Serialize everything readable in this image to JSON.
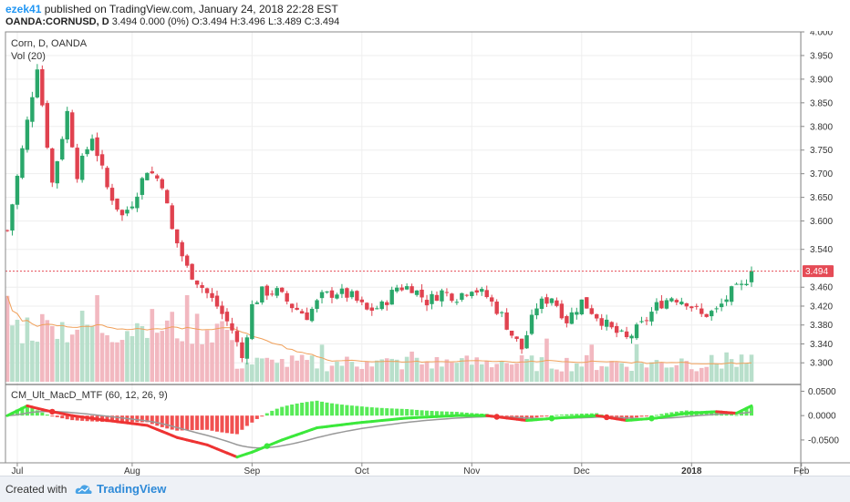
{
  "header": {
    "username": "ezek41",
    "published_text": " published on TradingView.com, January 24, 2018 22:28 EST",
    "symbol": "OANDA:CORNUSD, D",
    "quote": "  3.494  0.000 (0%)  O:3.494  H:3.496  L:3.489  C:3.494"
  },
  "legend": {
    "title": "Corn, D, OANDA",
    "volume_label": "Vol (20)",
    "indicator_label": "CM_Ult_MacD_MTF (60, 12, 26, 9)",
    "last_price_label": "3.494"
  },
  "footer": {
    "created_with": "Created with",
    "brand": "TradingView"
  },
  "colors": {
    "up": "#2aa76a",
    "down": "#e0424f",
    "volume_up": "#b8dfcb",
    "volume_down": "#f2b8c0",
    "volume_ma": "#f0a05a",
    "macd_up": "#3be83b",
    "macd_down": "#ee3333",
    "signal": "#999999",
    "last_price": "#e54b56",
    "grid": "#eeeeee"
  },
  "chart_data": {
    "type": "candlestick",
    "price_axis": {
      "ylim": [
        3.26,
        4.0
      ],
      "ticks": [
        "4.000",
        "3.950",
        "3.900",
        "3.850",
        "3.800",
        "3.750",
        "3.700",
        "3.650",
        "3.600",
        "3.540",
        "3.460",
        "3.420",
        "3.380",
        "3.340",
        "3.300"
      ]
    },
    "indicator_axis": {
      "ylim": [
        -0.095,
        0.062
      ],
      "ticks": [
        "0.0500",
        "0.0000",
        "-0.0500"
      ]
    },
    "time_axis": {
      "labels": [
        "Jul",
        "Aug",
        "Sep",
        "Oct",
        "Nov",
        "Dec",
        "2018",
        "Feb"
      ],
      "label_bar_index": [
        2,
        25,
        49,
        71,
        93,
        115,
        137,
        159
      ]
    },
    "last_price": 3.494,
    "anchors": [
      {
        "i": 0,
        "p": 3.58
      },
      {
        "i": 3,
        "p": 3.75
      },
      {
        "i": 6,
        "p": 3.93
      },
      {
        "i": 9,
        "p": 3.68
      },
      {
        "i": 12,
        "p": 3.83
      },
      {
        "i": 14,
        "p": 3.7
      },
      {
        "i": 17,
        "p": 3.78
      },
      {
        "i": 20,
        "p": 3.67
      },
      {
        "i": 23,
        "p": 3.61
      },
      {
        "i": 25,
        "p": 3.64
      },
      {
        "i": 28,
        "p": 3.71
      },
      {
        "i": 31,
        "p": 3.68
      },
      {
        "i": 33,
        "p": 3.58
      },
      {
        "i": 36,
        "p": 3.5
      },
      {
        "i": 39,
        "p": 3.46
      },
      {
        "i": 42,
        "p": 3.42
      },
      {
        "i": 45,
        "p": 3.37
      },
      {
        "i": 47,
        "p": 3.31
      },
      {
        "i": 49,
        "p": 3.42
      },
      {
        "i": 51,
        "p": 3.45
      },
      {
        "i": 54,
        "p": 3.45
      },
      {
        "i": 57,
        "p": 3.42
      },
      {
        "i": 60,
        "p": 3.4
      },
      {
        "i": 63,
        "p": 3.44
      },
      {
        "i": 66,
        "p": 3.45
      },
      {
        "i": 69,
        "p": 3.44
      },
      {
        "i": 72,
        "p": 3.41
      },
      {
        "i": 75,
        "p": 3.42
      },
      {
        "i": 78,
        "p": 3.46
      },
      {
        "i": 81,
        "p": 3.46
      },
      {
        "i": 84,
        "p": 3.43
      },
      {
        "i": 87,
        "p": 3.45
      },
      {
        "i": 90,
        "p": 3.44
      },
      {
        "i": 93,
        "p": 3.46
      },
      {
        "i": 96,
        "p": 3.44
      },
      {
        "i": 99,
        "p": 3.4
      },
      {
        "i": 101,
        "p": 3.36
      },
      {
        "i": 103,
        "p": 3.33
      },
      {
        "i": 106,
        "p": 3.42
      },
      {
        "i": 109,
        "p": 3.44
      },
      {
        "i": 112,
        "p": 3.39
      },
      {
        "i": 115,
        "p": 3.43
      },
      {
        "i": 118,
        "p": 3.4
      },
      {
        "i": 121,
        "p": 3.37
      },
      {
        "i": 124,
        "p": 3.35
      },
      {
        "i": 127,
        "p": 3.38
      },
      {
        "i": 130,
        "p": 3.42
      },
      {
        "i": 133,
        "p": 3.44
      },
      {
        "i": 136,
        "p": 3.43
      },
      {
        "i": 139,
        "p": 3.4
      },
      {
        "i": 142,
        "p": 3.41
      },
      {
        "i": 145,
        "p": 3.45
      },
      {
        "i": 147,
        "p": 3.46
      },
      {
        "i": 149,
        "p": 3.494
      }
    ],
    "volume_ylim": [
      0,
      300
    ],
    "macd_anchors": [
      {
        "i": 0,
        "v": 0.0
      },
      {
        "i": 4,
        "v": 0.02
      },
      {
        "i": 8,
        "v": 0.01
      },
      {
        "i": 13,
        "v": 0.0
      },
      {
        "i": 20,
        "v": -0.01
      },
      {
        "i": 28,
        "v": -0.02
      },
      {
        "i": 34,
        "v": -0.045
      },
      {
        "i": 40,
        "v": -0.06
      },
      {
        "i": 46,
        "v": -0.085
      },
      {
        "i": 49,
        "v": -0.075
      },
      {
        "i": 55,
        "v": -0.05
      },
      {
        "i": 62,
        "v": -0.025
      },
      {
        "i": 70,
        "v": -0.015
      },
      {
        "i": 80,
        "v": -0.005
      },
      {
        "i": 90,
        "v": 0.0
      },
      {
        "i": 96,
        "v": 0.0
      },
      {
        "i": 104,
        "v": -0.01
      },
      {
        "i": 110,
        "v": -0.005
      },
      {
        "i": 118,
        "v": 0.0
      },
      {
        "i": 124,
        "v": -0.01
      },
      {
        "i": 130,
        "v": -0.005
      },
      {
        "i": 136,
        "v": 0.005
      },
      {
        "i": 142,
        "v": 0.008
      },
      {
        "i": 146,
        "v": 0.005
      },
      {
        "i": 149,
        "v": 0.02
      }
    ]
  }
}
